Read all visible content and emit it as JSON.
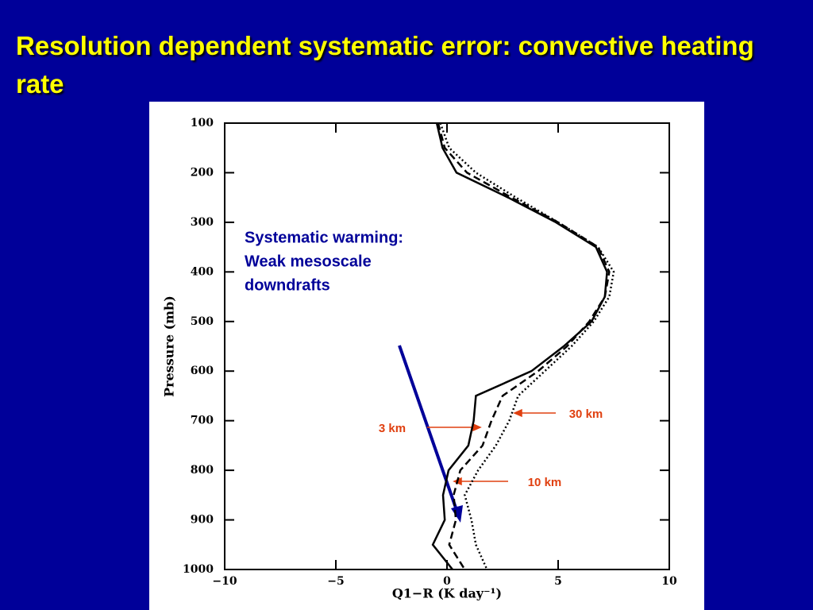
{
  "slide_title": "Resolution dependent systematic error: convective heating rate",
  "chart_data": {
    "type": "line",
    "xlabel": "Q1−R (K day⁻¹)",
    "ylabel": "Pressure (mb)",
    "y": [
      100,
      150,
      200,
      250,
      300,
      350,
      400,
      450,
      500,
      550,
      600,
      650,
      700,
      750,
      800,
      850,
      900,
      950,
      1000
    ],
    "series": [
      {
        "name": "3 km",
        "color": "#000000",
        "dash": "solid",
        "values": [
          -0.46,
          -0.2,
          0.43,
          2.75,
          4.9,
          6.7,
          7.2,
          7.1,
          6.5,
          5.25,
          3.8,
          1.3,
          1.2,
          0.96,
          0.07,
          -0.18,
          -0.1,
          -0.64,
          0.25
        ]
      },
      {
        "name": "10 km",
        "color": "#000000",
        "dash": "dashed",
        "values": [
          -0.4,
          -0.1,
          0.9,
          2.9,
          5.0,
          6.8,
          7.3,
          7.1,
          6.4,
          5.4,
          4.1,
          2.5,
          2.0,
          1.6,
          0.6,
          0.3,
          0.4,
          0.1,
          0.8
        ]
      },
      {
        "name": "30 km",
        "color": "#000000",
        "dash": "dotted",
        "values": [
          -0.3,
          0.1,
          1.3,
          3.1,
          5.0,
          6.8,
          7.5,
          7.3,
          6.6,
          5.6,
          4.4,
          3.2,
          2.8,
          2.2,
          1.4,
          0.8,
          1.1,
          1.3,
          1.8
        ]
      }
    ],
    "xlim": [
      -10,
      10
    ],
    "xticks": [
      {
        "value": -10,
        "label": "−10"
      },
      {
        "value": -5,
        "label": "−5"
      },
      0,
      5,
      10
    ],
    "ylim": [
      100,
      1000
    ],
    "y_inverted": true,
    "yticks": [
      100,
      200,
      300,
      400,
      500,
      600,
      700,
      800,
      900,
      1000
    ],
    "annotation": [
      "Systematic warming:",
      "Weak mesoscale",
      "downdrafts"
    ]
  }
}
